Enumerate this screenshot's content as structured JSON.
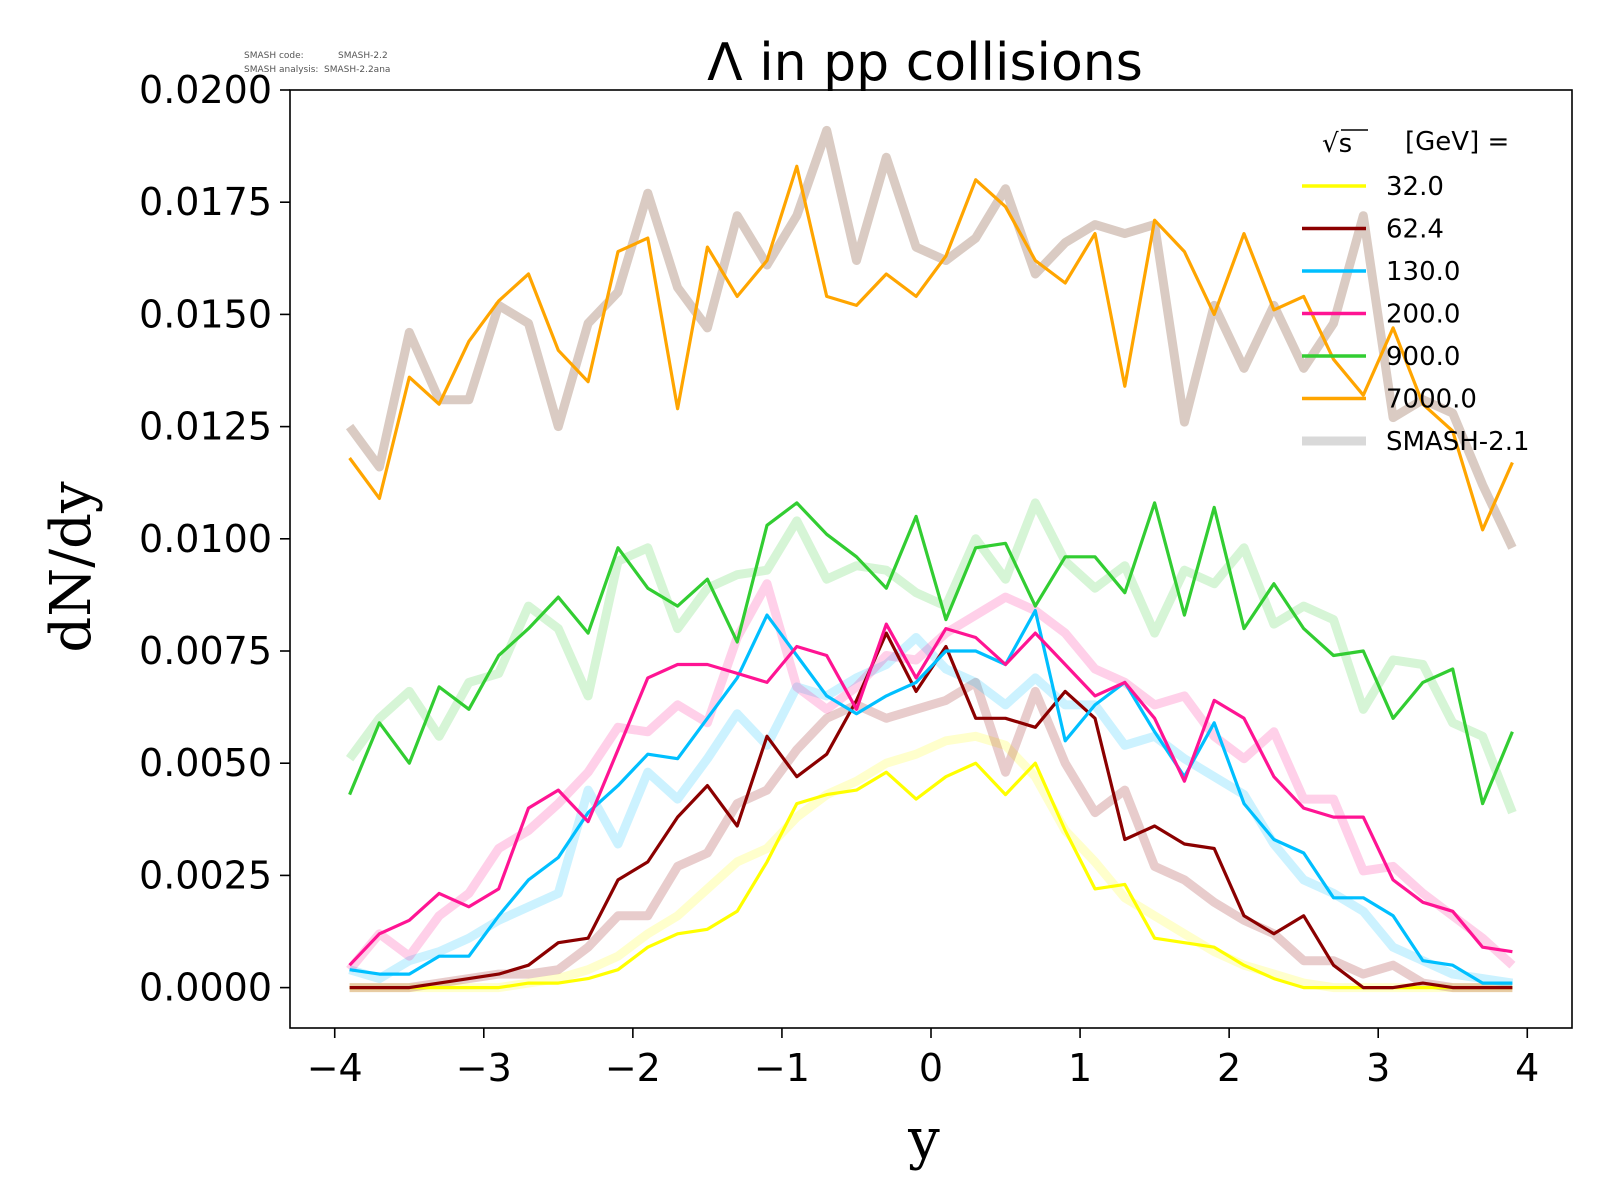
{
  "version_info": {
    "code_label": "SMASH code:",
    "code_value": "SMASH-2.2",
    "analysis_label": "SMASH analysis:",
    "analysis_value": "SMASH-2.2ana"
  },
  "chart_data": {
    "type": "line",
    "title": "Λ in pp collisions",
    "xlabel": "y",
    "ylabel": "dN/dy",
    "xlim": [
      -4.3,
      4.3
    ],
    "ylim": [
      -0.0009,
      0.02
    ],
    "xticks": [
      -4,
      -3,
      -2,
      -1,
      0,
      1,
      2,
      3,
      4
    ],
    "xtick_labels": [
      "−4",
      "−3",
      "−2",
      "−1",
      "0",
      "1",
      "2",
      "3",
      "4"
    ],
    "yticks": [
      0.0,
      0.0025,
      0.005,
      0.0075,
      0.01,
      0.0125,
      0.015,
      0.0175,
      0.02
    ],
    "ytick_labels": [
      "0.0000",
      "0.0025",
      "0.0050",
      "0.0075",
      "0.0100",
      "0.0125",
      "0.0150",
      "0.0175",
      "0.0200"
    ],
    "grid": false,
    "legend": {
      "placement": "top-right",
      "header_root": "√s",
      "header_text": "[GeV] =",
      "reference_label": "SMASH-2.1",
      "reference_color": "#d9d9d9"
    },
    "x": [
      -3.9,
      -3.7,
      -3.5,
      -3.3,
      -3.1,
      -2.9,
      -2.7,
      -2.5,
      -2.3,
      -2.1,
      -1.9,
      -1.7,
      -1.5,
      -1.3,
      -1.1,
      -0.9,
      -0.7,
      -0.5,
      -0.3,
      -0.1,
      0.1,
      0.3,
      0.5,
      0.7,
      0.9,
      1.1,
      1.3,
      1.5,
      1.7,
      1.9,
      2.1,
      2.3,
      2.5,
      2.7,
      2.9,
      3.1,
      3.3,
      3.5,
      3.7,
      3.9
    ],
    "series": [
      {
        "name": "32.0",
        "color": "#ffff00",
        "values": [
          0.0,
          0.0,
          0.0,
          0.0,
          0.0,
          0.0,
          0.0001,
          0.0001,
          0.0002,
          0.0004,
          0.0009,
          0.0012,
          0.0013,
          0.0017,
          0.0028,
          0.0041,
          0.0043,
          0.0044,
          0.0048,
          0.0042,
          0.0047,
          0.005,
          0.0043,
          0.005,
          0.0035,
          0.0022,
          0.0023,
          0.0011,
          0.001,
          0.0009,
          0.0005,
          0.0002,
          0.0,
          0.0,
          0.0,
          0.0,
          0.0,
          0.0,
          0.0,
          0.0
        ],
        "reference": [
          0.0,
          0.0,
          0.0,
          0.0,
          0.0,
          0.0,
          0.0001,
          0.0002,
          0.0004,
          0.0007,
          0.0012,
          0.0016,
          0.0022,
          0.0028,
          0.0031,
          0.0038,
          0.0043,
          0.0046,
          0.005,
          0.0052,
          0.0055,
          0.0056,
          0.0054,
          0.0047,
          0.0035,
          0.0028,
          0.002,
          0.0016,
          0.0012,
          0.0008,
          0.0005,
          0.0003,
          0.0001,
          0.0,
          0.0,
          0.0,
          0.0,
          0.0,
          0.0,
          0.0
        ]
      },
      {
        "name": "62.4",
        "color": "#8b0000",
        "values": [
          0.0,
          0.0,
          0.0,
          0.0001,
          0.0002,
          0.0003,
          0.0005,
          0.001,
          0.0011,
          0.0024,
          0.0028,
          0.0038,
          0.0045,
          0.0036,
          0.0056,
          0.0047,
          0.0052,
          0.0064,
          0.0079,
          0.0066,
          0.0076,
          0.006,
          0.006,
          0.0058,
          0.0066,
          0.006,
          0.0033,
          0.0036,
          0.0032,
          0.0031,
          0.0016,
          0.0012,
          0.0016,
          0.0005,
          0.0,
          0.0,
          0.0001,
          0.0,
          0.0,
          0.0
        ],
        "reference": [
          0.0,
          0.0,
          0.0,
          0.0001,
          0.0002,
          0.0003,
          0.0003,
          0.0004,
          0.0009,
          0.0016,
          0.0016,
          0.0027,
          0.003,
          0.0041,
          0.0044,
          0.0053,
          0.006,
          0.0063,
          0.006,
          0.0062,
          0.0064,
          0.0068,
          0.0048,
          0.0066,
          0.005,
          0.0039,
          0.0044,
          0.0027,
          0.0024,
          0.0019,
          0.0015,
          0.0012,
          0.0006,
          0.0006,
          0.0003,
          0.0005,
          0.0001,
          0.0,
          0.0,
          0.0
        ]
      },
      {
        "name": "130.0",
        "color": "#00bfff",
        "values": [
          0.0004,
          0.0003,
          0.0003,
          0.0007,
          0.0007,
          0.0016,
          0.0024,
          0.0029,
          0.0039,
          0.0045,
          0.0052,
          0.0051,
          0.006,
          0.0069,
          0.0083,
          0.0074,
          0.0065,
          0.0061,
          0.0065,
          0.0068,
          0.0075,
          0.0075,
          0.0072,
          0.0084,
          0.0055,
          0.0063,
          0.0068,
          0.0057,
          0.0047,
          0.0059,
          0.0041,
          0.0033,
          0.003,
          0.002,
          0.002,
          0.0016,
          0.0006,
          0.0005,
          0.0001,
          0.0001
        ],
        "reference": [
          0.0004,
          0.0002,
          0.0006,
          0.0008,
          0.0011,
          0.0015,
          0.0018,
          0.0021,
          0.0044,
          0.0032,
          0.0048,
          0.0042,
          0.0051,
          0.0061,
          0.0054,
          0.0067,
          0.0065,
          0.0069,
          0.0072,
          0.0078,
          0.0071,
          0.0068,
          0.0063,
          0.0069,
          0.0063,
          0.0063,
          0.0054,
          0.0056,
          0.0051,
          0.0047,
          0.0043,
          0.0032,
          0.0024,
          0.0021,
          0.0017,
          0.0009,
          0.0006,
          0.0003,
          0.0002,
          0.0001
        ]
      },
      {
        "name": "200.0",
        "color": "#ff1493",
        "values": [
          0.0005,
          0.0012,
          0.0015,
          0.0021,
          0.0018,
          0.0022,
          0.004,
          0.0044,
          0.0037,
          0.0053,
          0.0069,
          0.0072,
          0.0072,
          0.007,
          0.0068,
          0.0076,
          0.0074,
          0.0062,
          0.0081,
          0.0069,
          0.008,
          0.0078,
          0.0072,
          0.0079,
          0.0072,
          0.0065,
          0.0068,
          0.006,
          0.0046,
          0.0064,
          0.006,
          0.0047,
          0.004,
          0.0038,
          0.0038,
          0.0024,
          0.0019,
          0.0017,
          0.0009,
          0.0008
        ],
        "reference": [
          0.0004,
          0.0012,
          0.0007,
          0.0016,
          0.0021,
          0.0031,
          0.0035,
          0.0041,
          0.0048,
          0.0058,
          0.0057,
          0.0063,
          0.0059,
          0.0078,
          0.009,
          0.0067,
          0.0062,
          0.0067,
          0.0074,
          0.0073,
          0.0079,
          0.0083,
          0.0087,
          0.0084,
          0.0079,
          0.0071,
          0.0068,
          0.0063,
          0.0065,
          0.0056,
          0.0051,
          0.0057,
          0.0042,
          0.0042,
          0.0026,
          0.0027,
          0.0021,
          0.0016,
          0.0011,
          0.0005
        ]
      },
      {
        "name": "900.0",
        "color": "#32cd32",
        "values": [
          0.0043,
          0.0059,
          0.005,
          0.0067,
          0.0062,
          0.0074,
          0.008,
          0.0087,
          0.0079,
          0.0098,
          0.0089,
          0.0085,
          0.0091,
          0.0077,
          0.0103,
          0.0108,
          0.0101,
          0.0096,
          0.0089,
          0.0105,
          0.0082,
          0.0098,
          0.0099,
          0.0085,
          0.0096,
          0.0096,
          0.0088,
          0.0108,
          0.0083,
          0.0107,
          0.008,
          0.009,
          0.008,
          0.0074,
          0.0075,
          0.006,
          0.0068,
          0.0071,
          0.0041,
          0.0057
        ],
        "reference": [
          0.0051,
          0.006,
          0.0066,
          0.0056,
          0.0068,
          0.007,
          0.0085,
          0.008,
          0.0065,
          0.0095,
          0.0098,
          0.008,
          0.0089,
          0.0092,
          0.0093,
          0.0104,
          0.0091,
          0.0094,
          0.0093,
          0.0088,
          0.0085,
          0.01,
          0.0091,
          0.0108,
          0.0095,
          0.0089,
          0.0094,
          0.0079,
          0.0093,
          0.009,
          0.0098,
          0.0081,
          0.0085,
          0.0082,
          0.0062,
          0.0073,
          0.0072,
          0.0059,
          0.0056,
          0.0039
        ]
      },
      {
        "name": "7000.0",
        "color": "#ffa500",
        "values": [
          0.0118,
          0.0109,
          0.0136,
          0.013,
          0.0144,
          0.0153,
          0.0159,
          0.0142,
          0.0135,
          0.0164,
          0.0167,
          0.0129,
          0.0165,
          0.0154,
          0.0162,
          0.0183,
          0.0154,
          0.0152,
          0.0159,
          0.0154,
          0.0163,
          0.018,
          0.0174,
          0.0162,
          0.0157,
          0.0168,
          0.0134,
          0.0171,
          0.0164,
          0.015,
          0.0168,
          0.0151,
          0.0154,
          0.014,
          0.0132,
          0.0147,
          0.013,
          0.0124,
          0.0102,
          0.0117
        ],
        "reference": [
          0.0125,
          0.0116,
          0.0146,
          0.0131,
          0.0131,
          0.0152,
          0.0148,
          0.0125,
          0.0148,
          0.0155,
          0.0177,
          0.0156,
          0.0147,
          0.0172,
          0.0161,
          0.0172,
          0.0191,
          0.0162,
          0.0185,
          0.0165,
          0.0162,
          0.0167,
          0.0178,
          0.0159,
          0.0166,
          0.017,
          0.0168,
          0.017,
          0.0126,
          0.0152,
          0.0138,
          0.0152,
          0.0138,
          0.0148,
          0.0172,
          0.0127,
          0.0131,
          0.0128,
          0.0112,
          0.0098
        ]
      }
    ]
  }
}
